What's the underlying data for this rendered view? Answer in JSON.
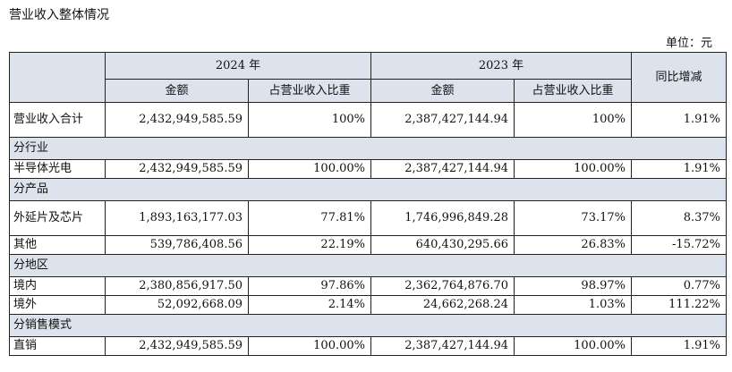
{
  "title": "营业收入整体情况",
  "unit": "单位：元",
  "header": {
    "year2024": "2024 年",
    "year2023": "2023 年",
    "amount": "金额",
    "ratio": "占营业收入比重",
    "yoy": "同比增减"
  },
  "total": {
    "label": "营业收入合计",
    "amt2024": "2,432,949,585.59",
    "ratio2024": "100%",
    "amt2023": "2,387,427,144.94",
    "ratio2023": "100%",
    "yoy": "1.91%"
  },
  "groups": {
    "industry": {
      "title": "分行业",
      "rows": [
        {
          "label": "半导体光电",
          "amt2024": "2,432,949,585.59",
          "ratio2024": "100.00%",
          "amt2023": "2,387,427,144.94",
          "ratio2023": "100.00%",
          "yoy": "1.91%"
        }
      ]
    },
    "product": {
      "title": "分产品",
      "rows": [
        {
          "label": "外延片及芯片",
          "amt2024": "1,893,163,177.03",
          "ratio2024": "77.81%",
          "amt2023": "1,746,996,849.28",
          "ratio2023": "73.17%",
          "yoy": "8.37%"
        },
        {
          "label": "其他",
          "amt2024": "539,786,408.56",
          "ratio2024": "22.19%",
          "amt2023": "640,430,295.66",
          "ratio2023": "26.83%",
          "yoy": "-15.72%"
        }
      ]
    },
    "region": {
      "title": "分地区",
      "rows": [
        {
          "label": "境内",
          "amt2024": "2,380,856,917.50",
          "ratio2024": "97.86%",
          "amt2023": "2,362,764,876.70",
          "ratio2023": "98.97%",
          "yoy": "0.77%"
        },
        {
          "label": "境外",
          "amt2024": "52,092,668.09",
          "ratio2024": "2.14%",
          "amt2023": "24,662,268.24",
          "ratio2023": "1.03%",
          "yoy": "111.22%"
        }
      ]
    },
    "sales": {
      "title": "分销售模式",
      "rows": [
        {
          "label": "直销",
          "amt2024": "2,432,949,585.59",
          "ratio2024": "100.00%",
          "amt2023": "2,387,427,144.94",
          "ratio2023": "100.00%",
          "yoy": "1.91%"
        }
      ]
    }
  }
}
